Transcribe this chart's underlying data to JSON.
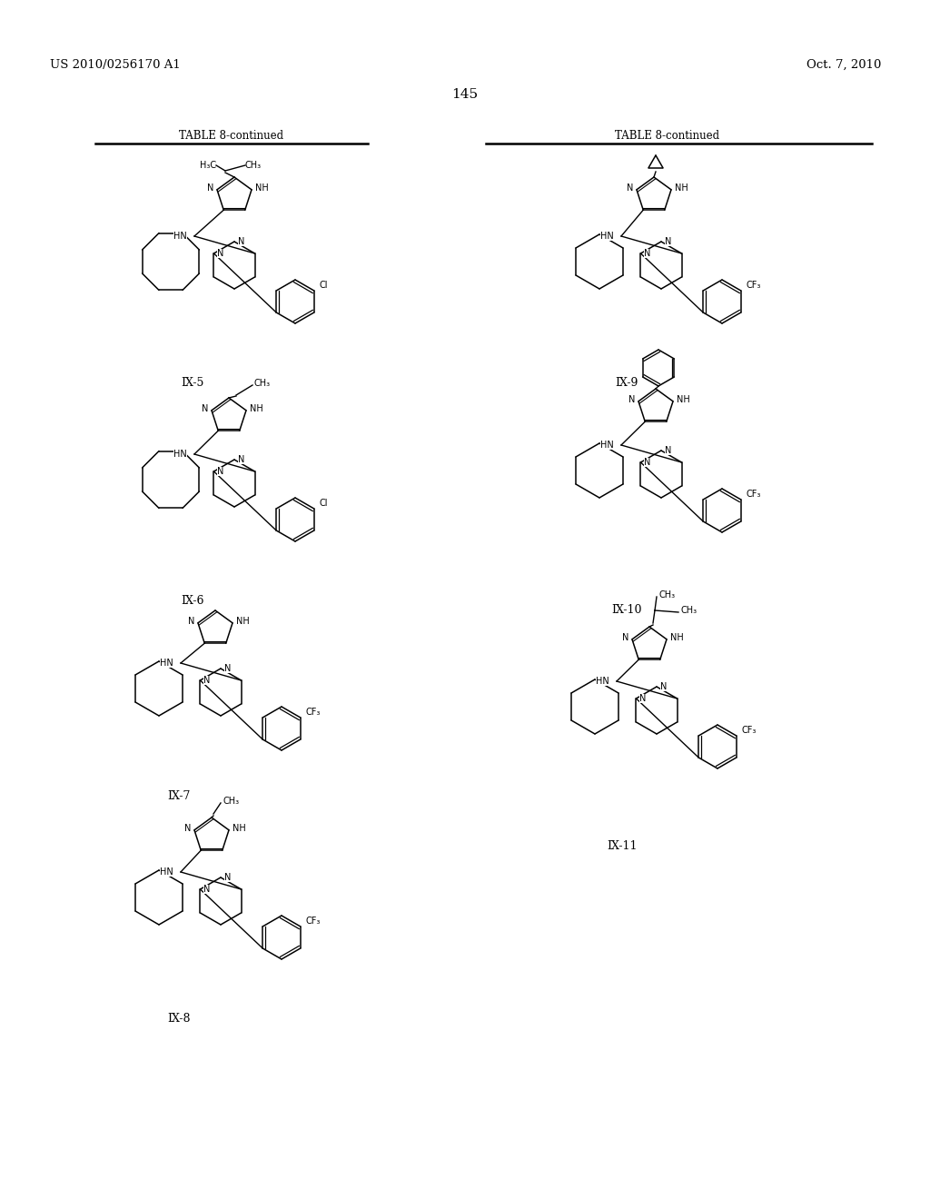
{
  "page_number": "145",
  "left_header": "US 2010/0256170 A1",
  "right_header": "Oct. 7, 2010",
  "table_title": "TABLE 8-continued",
  "background_color": "#ffffff",
  "text_color": "#000000",
  "compounds": [
    "IX-5",
    "IX-6",
    "IX-7",
    "IX-8",
    "IX-9",
    "IX-10",
    "IX-11"
  ]
}
